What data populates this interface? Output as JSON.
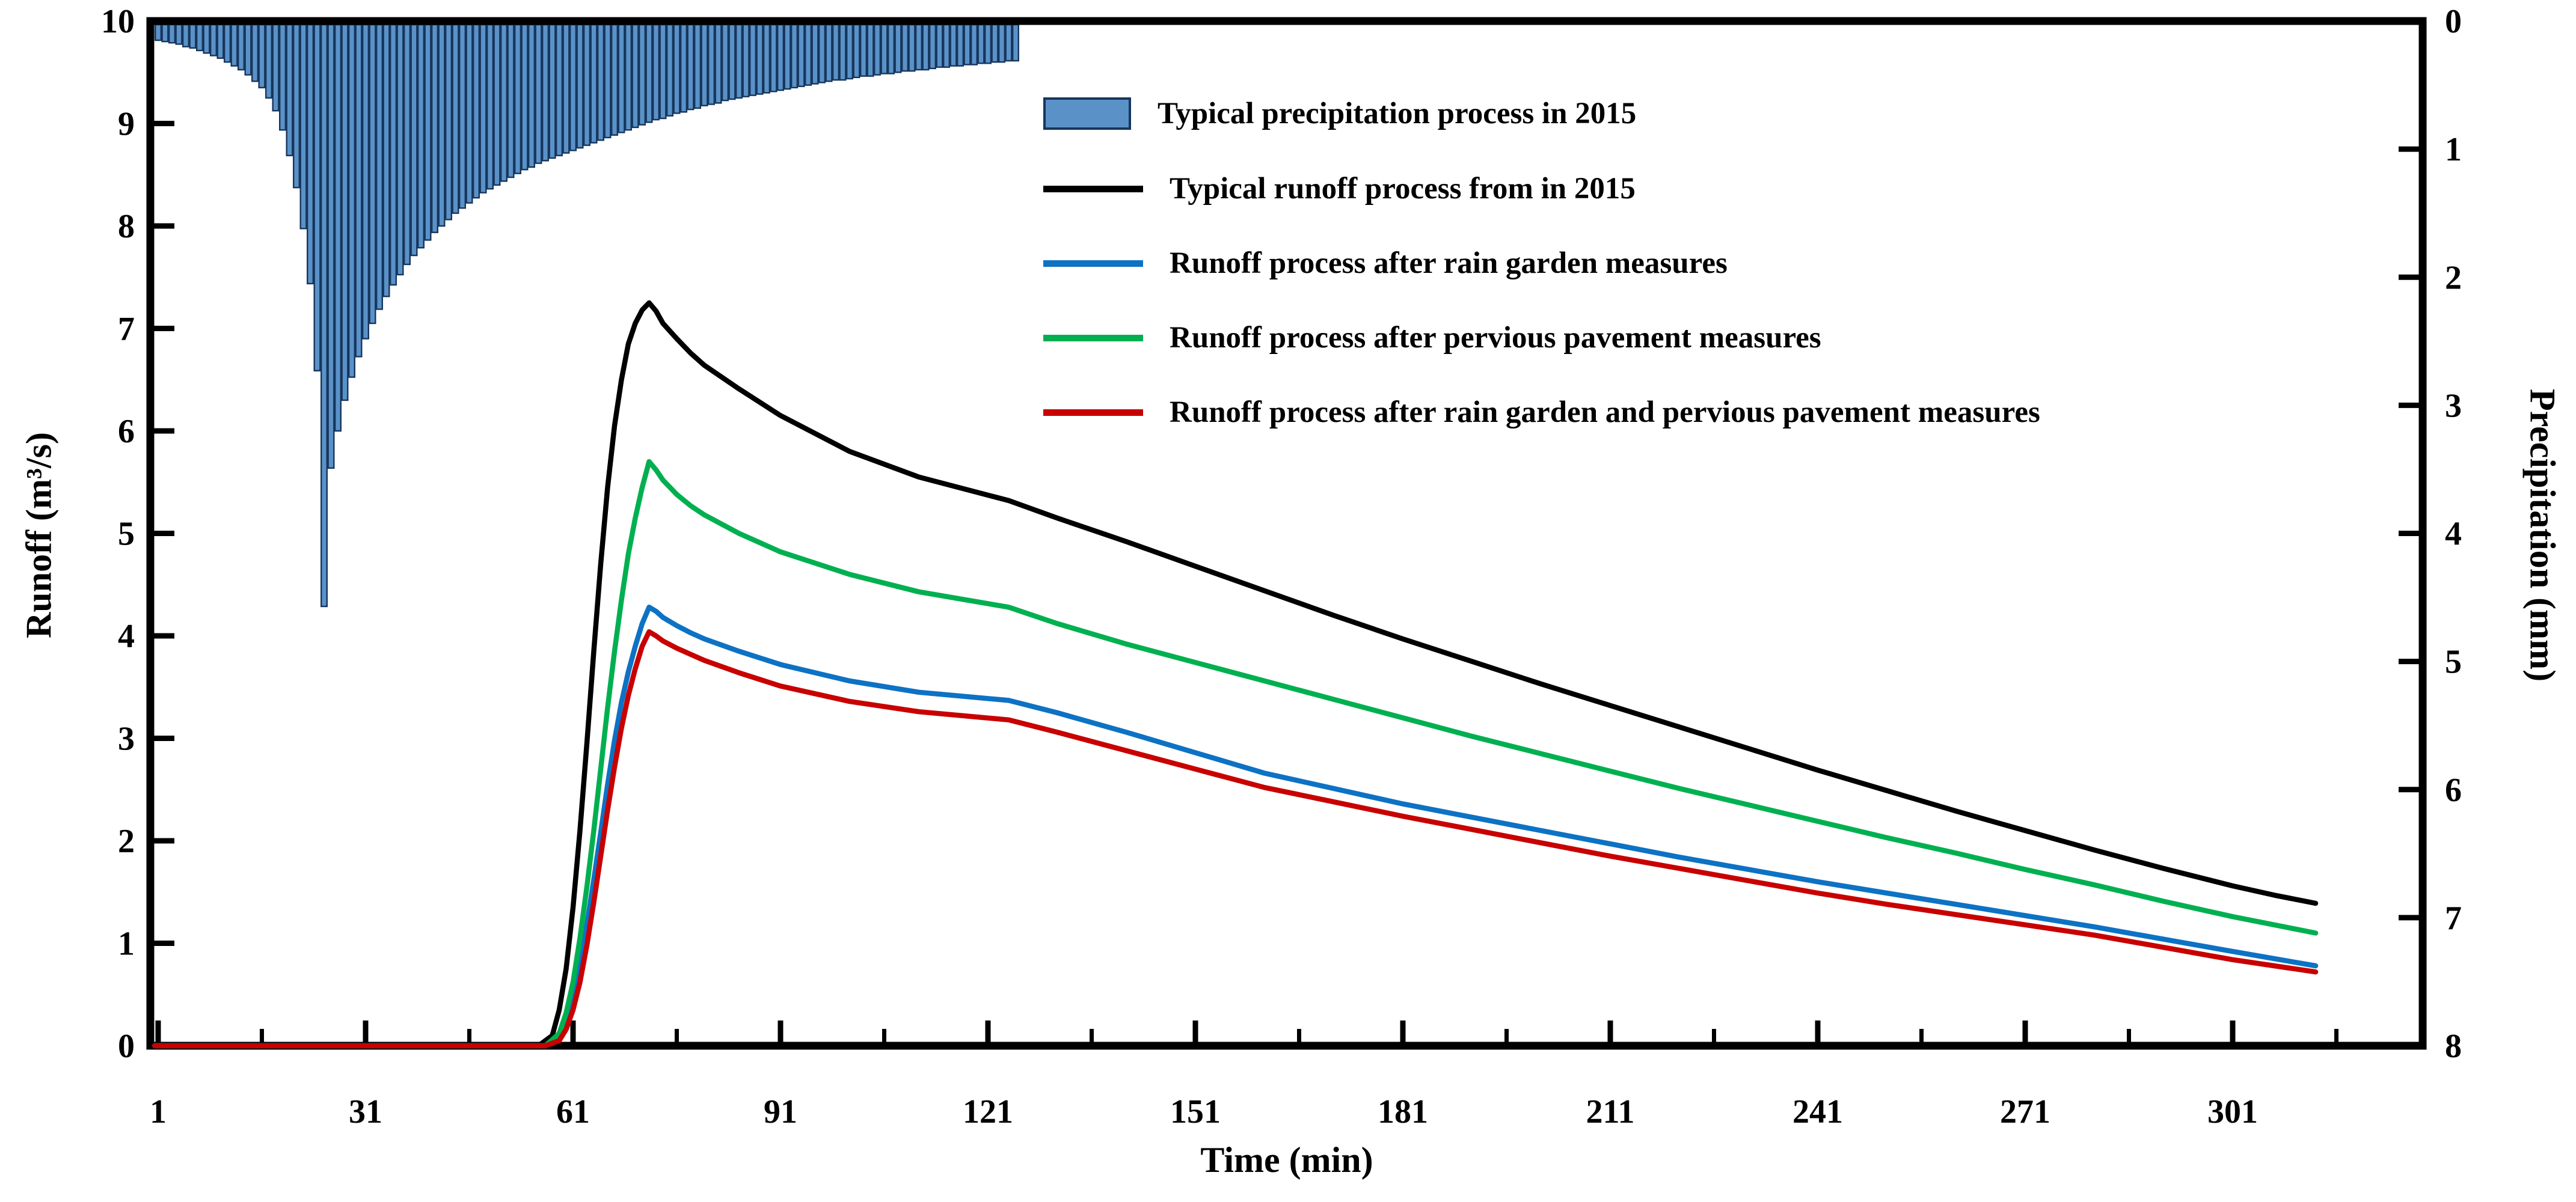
{
  "chart_data": {
    "type": "combo",
    "title": "",
    "x_axis": {
      "label": "Time (min)",
      "tick_labels": [
        "1",
        "31",
        "61",
        "91",
        "121",
        "151",
        "181",
        "211",
        "241",
        "271",
        "301"
      ],
      "tick_values": [
        1,
        31,
        61,
        91,
        121,
        151,
        181,
        211,
        241,
        271,
        301
      ],
      "minor_tick_values": [
        16,
        46,
        76,
        106,
        136,
        166,
        196,
        226,
        256,
        286,
        316
      ],
      "range": [
        1,
        328
      ]
    },
    "y_axis_left": {
      "label": "Runoff (m³/s)",
      "tick_values": [
        0,
        1,
        2,
        3,
        4,
        5,
        6,
        7,
        8,
        9,
        10
      ],
      "range": [
        0,
        10
      ]
    },
    "y_axis_right": {
      "label": "Precipitation (mm)",
      "tick_values": [
        0,
        1,
        2,
        3,
        4,
        5,
        6,
        7,
        8
      ],
      "range": [
        0,
        8
      ],
      "inverted": true
    },
    "grid": false,
    "legend": {
      "position": "upper-center-inside",
      "items": [
        {
          "label": "Typical precipitation process in 2015",
          "swatch": "box",
          "color": "#5a92c8",
          "border": "#17365d"
        },
        {
          "label": "Typical runoff process from in 2015",
          "swatch": "line",
          "color": "#000000"
        },
        {
          "label": "Runoff process after rain garden measures",
          "swatch": "line",
          "color": "#0d72c4"
        },
        {
          "label": "Runoff process after pervious pavement measures",
          "swatch": "line",
          "color": "#00b050"
        },
        {
          "label": "Runoff process after rain garden and pervious pavement measures",
          "swatch": "line",
          "color": "#c80000"
        }
      ]
    },
    "series": [
      {
        "id": "precipitation",
        "name": "Typical precipitation process in 2015",
        "type": "bar",
        "axis": "right",
        "color": "#5a92c8",
        "border_color": "#17365d",
        "start_minute": 1,
        "values": [
          0.15,
          0.16,
          0.17,
          0.18,
          0.2,
          0.21,
          0.23,
          0.25,
          0.27,
          0.29,
          0.32,
          0.35,
          0.38,
          0.42,
          0.47,
          0.52,
          0.6,
          0.7,
          0.85,
          1.05,
          1.3,
          1.62,
          2.05,
          2.73,
          4.57,
          3.49,
          3.2,
          2.96,
          2.78,
          2.62,
          2.48,
          2.36,
          2.25,
          2.15,
          2.06,
          1.98,
          1.9,
          1.83,
          1.77,
          1.71,
          1.65,
          1.6,
          1.55,
          1.5,
          1.46,
          1.42,
          1.38,
          1.34,
          1.31,
          1.28,
          1.25,
          1.22,
          1.19,
          1.16,
          1.14,
          1.11,
          1.09,
          1.07,
          1.05,
          1.03,
          1.01,
          0.99,
          0.97,
          0.95,
          0.93,
          0.91,
          0.89,
          0.87,
          0.85,
          0.83,
          0.81,
          0.79,
          0.77,
          0.76,
          0.74,
          0.72,
          0.71,
          0.69,
          0.68,
          0.66,
          0.65,
          0.64,
          0.62,
          0.61,
          0.6,
          0.59,
          0.58,
          0.57,
          0.56,
          0.55,
          0.54,
          0.53,
          0.52,
          0.51,
          0.5,
          0.49,
          0.48,
          0.47,
          0.46,
          0.46,
          0.45,
          0.44,
          0.43,
          0.43,
          0.42,
          0.41,
          0.41,
          0.4,
          0.39,
          0.39,
          0.38,
          0.38,
          0.37,
          0.36,
          0.36,
          0.35,
          0.35,
          0.34,
          0.34,
          0.33,
          0.33,
          0.32,
          0.32,
          0.31,
          0.31
        ]
      },
      {
        "id": "typical_runoff",
        "name": "Typical runoff process from in 2015",
        "type": "line",
        "axis": "left",
        "color": "#000000",
        "points": [
          [
            0.5,
            0
          ],
          [
            30,
            0
          ],
          [
            50,
            0
          ],
          [
            56,
            0
          ],
          [
            58,
            0.1
          ],
          [
            59,
            0.35
          ],
          [
            60,
            0.75
          ],
          [
            61,
            1.35
          ],
          [
            62,
            2.1
          ],
          [
            63,
            2.95
          ],
          [
            64,
            3.85
          ],
          [
            65,
            4.7
          ],
          [
            66,
            5.45
          ],
          [
            67,
            6.05
          ],
          [
            68,
            6.5
          ],
          [
            69,
            6.85
          ],
          [
            70,
            7.05
          ],
          [
            71,
            7.18
          ],
          [
            72,
            7.25
          ],
          [
            73,
            7.17
          ],
          [
            74,
            7.05
          ],
          [
            76,
            6.9
          ],
          [
            78,
            6.76
          ],
          [
            80,
            6.64
          ],
          [
            85,
            6.41
          ],
          [
            91,
            6.15
          ],
          [
            101,
            5.8
          ],
          [
            111,
            5.55
          ],
          [
            124,
            5.32
          ],
          [
            131,
            5.15
          ],
          [
            141,
            4.92
          ],
          [
            151,
            4.68
          ],
          [
            161,
            4.44
          ],
          [
            171,
            4.2
          ],
          [
            181,
            3.97
          ],
          [
            191,
            3.75
          ],
          [
            201,
            3.53
          ],
          [
            211,
            3.32
          ],
          [
            221,
            3.11
          ],
          [
            231,
            2.9
          ],
          [
            241,
            2.69
          ],
          [
            251,
            2.49
          ],
          [
            261,
            2.29
          ],
          [
            271,
            2.1
          ],
          [
            281,
            1.91
          ],
          [
            291,
            1.73
          ],
          [
            301,
            1.56
          ],
          [
            307,
            1.47
          ],
          [
            313,
            1.39
          ]
        ]
      },
      {
        "id": "rain_garden",
        "name": "Runoff process after rain garden measures",
        "type": "line",
        "axis": "left",
        "color": "#0d72c4",
        "points": [
          [
            0.5,
            0
          ],
          [
            30,
            0
          ],
          [
            50,
            0
          ],
          [
            57,
            0
          ],
          [
            59,
            0.08
          ],
          [
            60,
            0.22
          ],
          [
            61,
            0.45
          ],
          [
            62,
            0.78
          ],
          [
            63,
            1.18
          ],
          [
            64,
            1.62
          ],
          [
            65,
            2.08
          ],
          [
            66,
            2.55
          ],
          [
            67,
            2.98
          ],
          [
            68,
            3.35
          ],
          [
            69,
            3.65
          ],
          [
            70,
            3.9
          ],
          [
            71,
            4.12
          ],
          [
            72,
            4.28
          ],
          [
            73,
            4.24
          ],
          [
            74,
            4.18
          ],
          [
            76,
            4.1
          ],
          [
            78,
            4.03
          ],
          [
            80,
            3.97
          ],
          [
            85,
            3.85
          ],
          [
            91,
            3.72
          ],
          [
            101,
            3.56
          ],
          [
            111,
            3.45
          ],
          [
            124,
            3.37
          ],
          [
            131,
            3.25
          ],
          [
            141,
            3.06
          ],
          [
            151,
            2.86
          ],
          [
            161,
            2.66
          ],
          [
            171,
            2.51
          ],
          [
            181,
            2.36
          ],
          [
            191,
            2.23
          ],
          [
            201,
            2.1
          ],
          [
            211,
            1.97
          ],
          [
            221,
            1.84
          ],
          [
            231,
            1.72
          ],
          [
            241,
            1.6
          ],
          [
            251,
            1.49
          ],
          [
            261,
            1.38
          ],
          [
            271,
            1.27
          ],
          [
            281,
            1.16
          ],
          [
            291,
            1.04
          ],
          [
            301,
            0.92
          ],
          [
            307,
            0.85
          ],
          [
            313,
            0.78
          ]
        ]
      },
      {
        "id": "pervious_pavement",
        "name": "Runoff process after pervious pavement measures",
        "type": "line",
        "axis": "left",
        "color": "#00b050",
        "points": [
          [
            0.5,
            0
          ],
          [
            30,
            0
          ],
          [
            50,
            0
          ],
          [
            57,
            0
          ],
          [
            59,
            0.12
          ],
          [
            60,
            0.32
          ],
          [
            61,
            0.62
          ],
          [
            62,
            1.05
          ],
          [
            63,
            1.55
          ],
          [
            64,
            2.1
          ],
          [
            65,
            2.7
          ],
          [
            66,
            3.3
          ],
          [
            67,
            3.85
          ],
          [
            68,
            4.35
          ],
          [
            69,
            4.8
          ],
          [
            70,
            5.15
          ],
          [
            71,
            5.45
          ],
          [
            72,
            5.7
          ],
          [
            73,
            5.62
          ],
          [
            74,
            5.52
          ],
          [
            76,
            5.38
          ],
          [
            78,
            5.27
          ],
          [
            80,
            5.18
          ],
          [
            85,
            5.0
          ],
          [
            91,
            4.82
          ],
          [
            101,
            4.6
          ],
          [
            111,
            4.43
          ],
          [
            124,
            4.28
          ],
          [
            131,
            4.12
          ],
          [
            141,
            3.92
          ],
          [
            151,
            3.74
          ],
          [
            161,
            3.56
          ],
          [
            171,
            3.38
          ],
          [
            181,
            3.2
          ],
          [
            191,
            3.02
          ],
          [
            201,
            2.85
          ],
          [
            211,
            2.68
          ],
          [
            221,
            2.51
          ],
          [
            231,
            2.35
          ],
          [
            241,
            2.19
          ],
          [
            251,
            2.03
          ],
          [
            261,
            1.88
          ],
          [
            271,
            1.72
          ],
          [
            281,
            1.57
          ],
          [
            291,
            1.41
          ],
          [
            301,
            1.26
          ],
          [
            307,
            1.18
          ],
          [
            313,
            1.1
          ]
        ]
      },
      {
        "id": "combined_measures",
        "name": "Runoff process after rain garden and pervious pavement measures",
        "type": "line",
        "axis": "left",
        "color": "#c80000",
        "points": [
          [
            0.5,
            0
          ],
          [
            30,
            0
          ],
          [
            50,
            0
          ],
          [
            57,
            0
          ],
          [
            59,
            0.05
          ],
          [
            60,
            0.16
          ],
          [
            61,
            0.35
          ],
          [
            62,
            0.62
          ],
          [
            63,
            0.98
          ],
          [
            64,
            1.4
          ],
          [
            65,
            1.85
          ],
          [
            66,
            2.3
          ],
          [
            67,
            2.72
          ],
          [
            68,
            3.1
          ],
          [
            69,
            3.42
          ],
          [
            70,
            3.68
          ],
          [
            71,
            3.9
          ],
          [
            72,
            4.04
          ],
          [
            73,
            4.0
          ],
          [
            74,
            3.95
          ],
          [
            76,
            3.88
          ],
          [
            78,
            3.82
          ],
          [
            80,
            3.76
          ],
          [
            85,
            3.64
          ],
          [
            91,
            3.51
          ],
          [
            101,
            3.36
          ],
          [
            111,
            3.26
          ],
          [
            124,
            3.18
          ],
          [
            131,
            3.06
          ],
          [
            141,
            2.88
          ],
          [
            151,
            2.7
          ],
          [
            161,
            2.52
          ],
          [
            171,
            2.38
          ],
          [
            181,
            2.24
          ],
          [
            191,
            2.11
          ],
          [
            201,
            1.98
          ],
          [
            211,
            1.85
          ],
          [
            221,
            1.73
          ],
          [
            231,
            1.61
          ],
          [
            241,
            1.49
          ],
          [
            251,
            1.38
          ],
          [
            261,
            1.28
          ],
          [
            271,
            1.18
          ],
          [
            281,
            1.08
          ],
          [
            291,
            0.96
          ],
          [
            301,
            0.84
          ],
          [
            307,
            0.78
          ],
          [
            313,
            0.72
          ]
        ]
      }
    ]
  }
}
